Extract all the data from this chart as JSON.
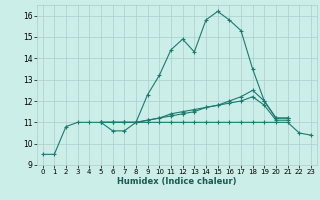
{
  "xlabel": "Humidex (Indice chaleur)",
  "xlim": [
    -0.5,
    23.5
  ],
  "ylim": [
    9,
    16.5
  ],
  "yticks": [
    9,
    10,
    11,
    12,
    13,
    14,
    15,
    16
  ],
  "xticks": [
    0,
    1,
    2,
    3,
    4,
    5,
    6,
    7,
    8,
    9,
    10,
    11,
    12,
    13,
    14,
    15,
    16,
    17,
    18,
    19,
    20,
    21,
    22,
    23
  ],
  "bg_color": "#cceee8",
  "line_color": "#1a7a6e",
  "grid_color": "#aacccc",
  "series": [
    {
      "x": [
        0,
        1,
        2,
        3,
        4,
        5,
        6,
        7,
        8,
        9,
        10,
        11,
        12,
        13,
        14,
        15,
        16,
        17,
        18,
        19,
        20,
        21
      ],
      "y": [
        9.5,
        9.5,
        10.8,
        11.0,
        11.0,
        11.0,
        10.6,
        10.6,
        11.0,
        12.3,
        13.2,
        14.4,
        14.9,
        14.3,
        15.8,
        16.2,
        15.8,
        15.3,
        13.5,
        12.0,
        11.2,
        11.2
      ]
    },
    {
      "x": [
        5,
        6,
        7,
        8,
        9,
        10,
        11,
        12,
        13,
        14,
        15,
        16,
        17,
        18,
        19,
        20,
        21
      ],
      "y": [
        11.0,
        11.0,
        11.0,
        11.0,
        11.1,
        11.2,
        11.4,
        11.5,
        11.6,
        11.7,
        11.8,
        12.0,
        12.2,
        12.5,
        12.0,
        11.2,
        11.2
      ]
    },
    {
      "x": [
        5,
        6,
        7,
        8,
        9,
        10,
        11,
        12,
        13,
        14,
        15,
        16,
        17,
        18,
        19,
        20,
        21
      ],
      "y": [
        11.0,
        11.0,
        11.0,
        11.0,
        11.1,
        11.2,
        11.3,
        11.4,
        11.5,
        11.7,
        11.8,
        11.9,
        12.0,
        12.2,
        11.8,
        11.1,
        11.1
      ]
    },
    {
      "x": [
        5,
        6,
        7,
        8,
        9,
        10,
        11,
        12,
        13,
        14,
        15,
        16,
        17,
        18,
        19,
        20,
        21,
        22,
        23
      ],
      "y": [
        11.0,
        11.0,
        11.0,
        11.0,
        11.0,
        11.0,
        11.0,
        11.0,
        11.0,
        11.0,
        11.0,
        11.0,
        11.0,
        11.0,
        11.0,
        11.0,
        11.0,
        10.5,
        10.4
      ]
    }
  ]
}
